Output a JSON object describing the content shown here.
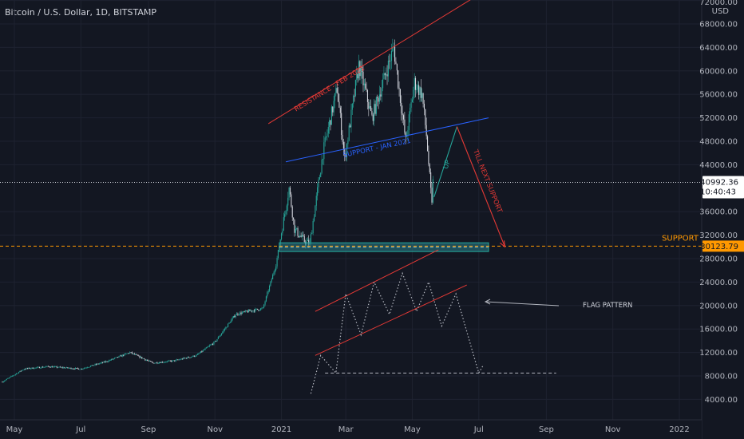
{
  "title": "Bitcoin / U.S. Dollar, 1D, BITSTAMP",
  "colors": {
    "background": "#131722",
    "candle_up": "#26a69a",
    "candle_down": "#d1d4dc",
    "resistance": "#e53935",
    "support_channel": "#2962ff",
    "support_line": "#ff9800",
    "projection_up": "#26a69a",
    "projection_down": "#e53935",
    "box": "#2a7f8a",
    "flag": "#b2b5be",
    "grid": "#1e2230"
  },
  "chart_data": {
    "type": "candlestick",
    "title": "Bitcoin / U.S. Dollar, 1D, BITSTAMP",
    "y_axis": {
      "currency": "USD",
      "ticks": [
        "72000.00",
        "68000.00",
        "64000.00",
        "60000.00",
        "56000.00",
        "52000.00",
        "48000.00",
        "44000.00",
        "36000.00",
        "32000.00",
        "28000.00",
        "24000.00",
        "20000.00",
        "16000.00",
        "12000.00",
        "8000.00",
        "4000.00"
      ],
      "tick_values": [
        72000,
        68000,
        64000,
        60000,
        56000,
        52000,
        48000,
        44000,
        36000,
        32000,
        28000,
        24000,
        20000,
        16000,
        12000,
        8000,
        4000
      ],
      "ylim": [
        2000,
        72000
      ]
    },
    "x_axis": {
      "ticks": [
        "May",
        "Jul",
        "Sep",
        "Nov",
        "2021",
        "Mar",
        "May",
        "Jul",
        "Sep",
        "Nov",
        "2022"
      ],
      "tick_dates": [
        "2020-05-01",
        "2020-07-01",
        "2020-09-01",
        "2020-11-01",
        "2021-01-01",
        "2021-03-01",
        "2021-05-01",
        "2021-07-01",
        "2021-09-01",
        "2021-11-01",
        "2022-01-01"
      ]
    },
    "price_path": [
      [
        "2020-04-20",
        7000
      ],
      [
        "2020-05-10",
        9200
      ],
      [
        "2020-06-01",
        9600
      ],
      [
        "2020-07-01",
        9200
      ],
      [
        "2020-07-25",
        10500
      ],
      [
        "2020-08-15",
        12000
      ],
      [
        "2020-09-05",
        10200
      ],
      [
        "2020-09-25",
        10600
      ],
      [
        "2020-10-15",
        11500
      ],
      [
        "2020-11-01",
        13800
      ],
      [
        "2020-11-20",
        18500
      ],
      [
        "2020-12-01",
        19000
      ],
      [
        "2020-12-15",
        19500
      ],
      [
        "2020-12-27",
        27000
      ],
      [
        "2021-01-08",
        40000
      ],
      [
        "2021-01-13",
        33000
      ],
      [
        "2021-01-22",
        31000
      ],
      [
        "2021-01-27",
        30500
      ],
      [
        "2021-02-08",
        46000
      ],
      [
        "2021-02-21",
        57000
      ],
      [
        "2021-02-28",
        45000
      ],
      [
        "2021-03-13",
        61000
      ],
      [
        "2021-03-25",
        52000
      ],
      [
        "2021-04-14",
        64000
      ],
      [
        "2021-04-25",
        48000
      ],
      [
        "2021-05-03",
        58000
      ],
      [
        "2021-05-10",
        56000
      ],
      [
        "2021-05-14",
        49000
      ],
      [
        "2021-05-19",
        37000
      ],
      [
        "2021-05-20",
        42000
      ]
    ],
    "annotations": {
      "resistance": {
        "label": "RESISTANCE - FEB 2021",
        "from": [
          "2020-12-20",
          51000
        ],
        "to": [
          "2021-07-01",
          73000
        ]
      },
      "support_channel": {
        "label": "SUPPORT - JAN 2021",
        "from": [
          "2021-01-05",
          44500
        ],
        "to": [
          "2021-07-10",
          52000
        ]
      },
      "up_label": "UP",
      "down_label": "TILL NEXT SUPPORT",
      "projection": [
        [
          "2021-05-21",
          38500
        ],
        [
          "2021-06-11",
          50500
        ],
        [
          "2021-07-25",
          30000
        ]
      ],
      "support_level": {
        "label": "SUPPORT",
        "price": 30123.79,
        "price_label": "30123.79"
      },
      "current_price": {
        "price": 40992.36,
        "price_label": "40992.36",
        "countdown": "10:40:43"
      },
      "support_box": {
        "from": [
          "2020-12-30",
          29200
        ],
        "to": [
          "2021-07-10",
          30700
        ]
      },
      "flag_pattern_label": "FLAG PATTERN",
      "flag_upper": [
        [
          "2021-02-01",
          19000
        ],
        [
          "2021-05-25",
          29500
        ]
      ],
      "flag_mid": [
        [
          "2021-02-01",
          11500
        ],
        [
          "2021-06-20",
          23500
        ]
      ],
      "flag_zigzag": [
        [
          "2021-01-28",
          5000
        ],
        [
          "2021-02-06",
          11500
        ],
        [
          "2021-02-20",
          8500
        ],
        [
          "2021-03-01",
          22000
        ],
        [
          "2021-03-15",
          15000
        ],
        [
          "2021-03-27",
          24000
        ],
        [
          "2021-04-10",
          18500
        ],
        [
          "2021-04-22",
          25500
        ],
        [
          "2021-05-05",
          19000
        ],
        [
          "2021-05-16",
          24000
        ],
        [
          "2021-05-28",
          16500
        ],
        [
          "2021-06-10",
          22000
        ],
        [
          "2021-07-01",
          8500
        ],
        [
          "2021-07-05",
          9800
        ]
      ],
      "flag_base": {
        "from": [
          "2021-02-10",
          8500
        ],
        "to": [
          "2021-09-10",
          8500
        ]
      }
    }
  }
}
